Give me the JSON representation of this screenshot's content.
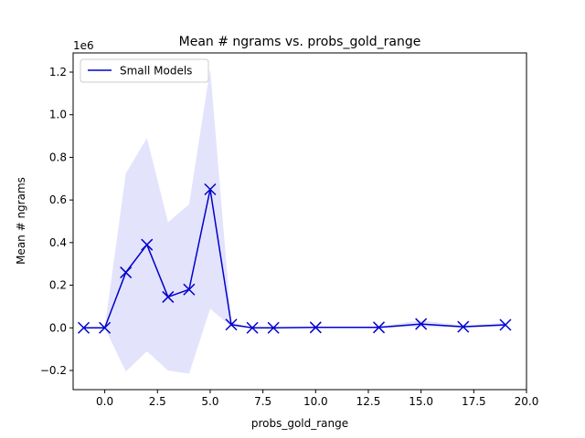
{
  "chart_data": {
    "type": "line",
    "title": "Mean # ngrams vs. probs_gold_range",
    "xlabel": "probs_gold_range",
    "ylabel": "Mean # ngrams",
    "y_scale_label": "1e6",
    "xlim": [
      -1.5,
      20.0
    ],
    "ylim": [
      -0.29,
      1.29
    ],
    "x_ticks": [
      0.0,
      2.5,
      5.0,
      7.5,
      10.0,
      12.5,
      15.0,
      17.5,
      20.0
    ],
    "x_tick_labels": [
      "0.0",
      "2.5",
      "5.0",
      "7.5",
      "10.0",
      "12.5",
      "15.0",
      "17.5",
      "20.0"
    ],
    "y_ticks": [
      -0.2,
      0.0,
      0.2,
      0.4,
      0.6,
      0.8,
      1.0,
      1.2
    ],
    "y_tick_labels": [
      "−0.2",
      "0.0",
      "0.2",
      "0.4",
      "0.6",
      "0.8",
      "1.0",
      "1.2"
    ],
    "grid": false,
    "legend_position": "top-left",
    "series": [
      {
        "name": "Small Models",
        "color": "#0000cc",
        "band_color": "#d9d9fb",
        "marker": "x",
        "x": [
          -1,
          0,
          1,
          2,
          3,
          4,
          5,
          6,
          7,
          8,
          10,
          13,
          15,
          17,
          19
        ],
        "y": [
          0.0,
          0.0,
          0.26,
          0.39,
          0.145,
          0.18,
          0.65,
          0.015,
          0.0,
          0.0,
          0.002,
          0.002,
          0.018,
          0.005,
          0.014
        ],
        "lower": [
          0.0,
          0.0,
          -0.205,
          -0.11,
          -0.2,
          -0.215,
          0.09,
          0.005,
          0.0,
          0.0,
          0.0,
          -0.002,
          0.005,
          0.0,
          0.005
        ],
        "upper": [
          0.0,
          0.0,
          0.725,
          0.89,
          0.495,
          0.58,
          1.215,
          0.025,
          0.0,
          0.0,
          0.004,
          0.006,
          0.035,
          0.01,
          0.024
        ]
      }
    ]
  }
}
